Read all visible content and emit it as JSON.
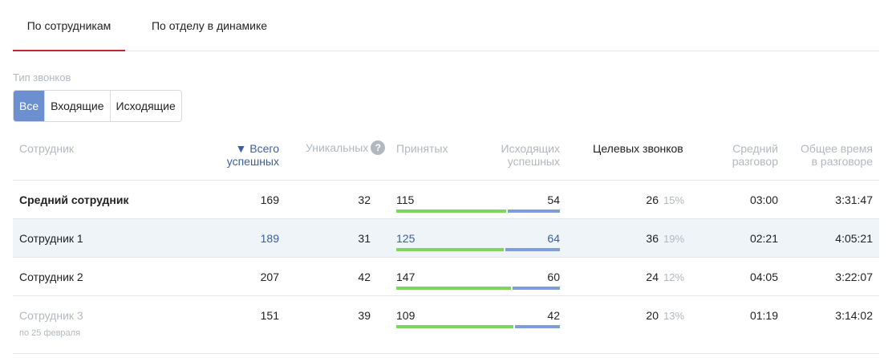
{
  "tabs": [
    {
      "label": "По сотрудникам",
      "active": true
    },
    {
      "label": "По отделу в динамике",
      "active": false
    }
  ],
  "filter": {
    "label": "Тип звонков",
    "options": [
      "Все",
      "Входящие",
      "Исходящие"
    ],
    "selected": "Все"
  },
  "columns": {
    "employee": "Сотрудник",
    "total_line1": "▼ Всего",
    "total_line2": "успешных",
    "unique": "Уникальных",
    "unique_help": "?",
    "accepted": "Принятых",
    "outgoing_line1": "Исходящих",
    "outgoing_line2": "успешных",
    "target": "Целевых звонков",
    "avg_line1": "Средний",
    "avg_line2": "разговор",
    "time_line1": "Общее время",
    "time_line2": "в разговоре"
  },
  "rows": [
    {
      "name": "Средний сотрудник",
      "total": "169",
      "unique": "32",
      "accepted": "115",
      "outgoing": "54",
      "target": "26",
      "target_pct": "15%",
      "avg": "03:00",
      "time": "3:31:47",
      "note": ""
    },
    {
      "name": "Сотрудник 1",
      "total": "189",
      "unique": "31",
      "accepted": "125",
      "outgoing": "64",
      "target": "36",
      "target_pct": "19%",
      "avg": "02:21",
      "time": "4:05:21",
      "note": ""
    },
    {
      "name": "Сотрудник 2",
      "total": "207",
      "unique": "42",
      "accepted": "147",
      "outgoing": "60",
      "target": "24",
      "target_pct": "12%",
      "avg": "04:05",
      "time": "3:22:07",
      "note": ""
    },
    {
      "name": "Сотрудник 3",
      "total": "151",
      "unique": "39",
      "accepted": "109",
      "outgoing": "42",
      "target": "20",
      "target_pct": "13%",
      "avg": "01:19",
      "time": "3:14:02",
      "note": "по 25 февраля"
    }
  ],
  "colors": {
    "accent_tab": "#c62828",
    "selected_button": "#6c8fd0",
    "link": "#3d5f9e",
    "bar_accepted": "#85d45a",
    "bar_outgoing": "#7f9fd4",
    "highlight_row": "#eef4f8"
  }
}
